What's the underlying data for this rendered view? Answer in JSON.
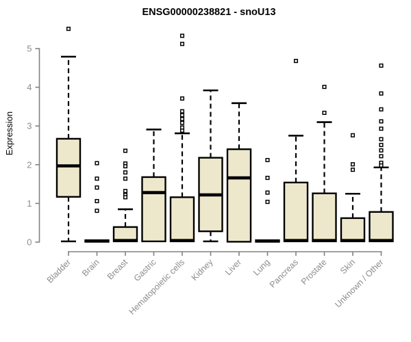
{
  "chart_data": {
    "type": "boxplot",
    "title": "ENSG00000238821 - snoU13",
    "ylabel": "Expression",
    "xlabel": "",
    "ylim": [
      0,
      5.6
    ],
    "yticks": [
      0,
      1,
      2,
      3,
      4,
      5
    ],
    "grid": false,
    "legend": "none",
    "colors": {
      "box_fill": "#EDE8CC",
      "box_stroke": "#000000",
      "median": "#000000",
      "whisker": "#000000",
      "outlier_stroke": "#000000",
      "outlier_fill": "#FFFFFF",
      "axis_line": "#808080",
      "axis_text": "#8C8C8C",
      "title": "#000000",
      "background": "#FFFFFF"
    },
    "categories": [
      "Bladder",
      "Brain",
      "Breast",
      "Gastric",
      "Hematopoietic cells",
      "Kidney",
      "Liver",
      "Lung",
      "Pancreas",
      "Prostate",
      "Skin",
      "Unknown / Other"
    ],
    "series": [
      {
        "name": "Bladder",
        "whislo": 0.02,
        "q1": 1.17,
        "med": 1.97,
        "q3": 2.67,
        "whishi": 4.79,
        "outliers": [
          5.51
        ]
      },
      {
        "name": "Brain",
        "whislo": 0.0,
        "q1": 0.01,
        "med": 0.03,
        "q3": 0.05,
        "whishi": 0.05,
        "outliers": [
          2.04,
          1.64,
          1.41,
          1.06,
          0.81
        ]
      },
      {
        "name": "Breast",
        "whislo": 0.01,
        "q1": 0.02,
        "med": 0.04,
        "q3": 0.39,
        "whishi": 0.85,
        "outliers": [
          2.36,
          2.03,
          1.96,
          1.8,
          1.64,
          1.32,
          1.22,
          1.16
        ]
      },
      {
        "name": "Gastric",
        "whislo": 0.01,
        "q1": 0.02,
        "med": 1.28,
        "q3": 1.68,
        "whishi": 2.91,
        "outliers": []
      },
      {
        "name": "Hematopoietic cells",
        "whislo": 0.01,
        "q1": 0.02,
        "med": 0.04,
        "q3": 1.16,
        "whishi": 2.81,
        "outliers": [
          5.33,
          5.12,
          3.71,
          3.38,
          3.28,
          3.18,
          3.08,
          2.96,
          2.88
        ]
      },
      {
        "name": "Kidney",
        "whislo": 0.02,
        "q1": 0.28,
        "med": 1.22,
        "q3": 2.18,
        "whishi": 3.92,
        "outliers": []
      },
      {
        "name": "Liver",
        "whislo": 0.01,
        "q1": 0.01,
        "med": 1.66,
        "q3": 2.4,
        "whishi": 3.59,
        "outliers": []
      },
      {
        "name": "Lung",
        "whislo": 0.0,
        "q1": 0.01,
        "med": 0.03,
        "q3": 0.05,
        "whishi": 0.05,
        "outliers": [
          2.12,
          1.66,
          1.28,
          1.04
        ]
      },
      {
        "name": "Pancreas",
        "whislo": 0.01,
        "q1": 0.02,
        "med": 0.04,
        "q3": 1.54,
        "whishi": 2.75,
        "outliers": [
          4.68
        ]
      },
      {
        "name": "Prostate",
        "whislo": 0.01,
        "q1": 0.02,
        "med": 0.04,
        "q3": 1.26,
        "whishi": 3.1,
        "outliers": [
          4.01,
          3.34
        ]
      },
      {
        "name": "Skin",
        "whislo": 0.01,
        "q1": 0.02,
        "med": 0.04,
        "q3": 0.62,
        "whishi": 1.25,
        "outliers": [
          2.76,
          2.01,
          1.87
        ]
      },
      {
        "name": "Unknown / Other",
        "whislo": 0.01,
        "q1": 0.02,
        "med": 0.04,
        "q3": 0.78,
        "whishi": 1.93,
        "outliers": [
          4.56,
          3.84,
          3.43,
          3.12,
          2.93,
          2.66,
          2.51,
          2.37,
          2.22,
          2.05,
          1.98
        ]
      }
    ]
  }
}
